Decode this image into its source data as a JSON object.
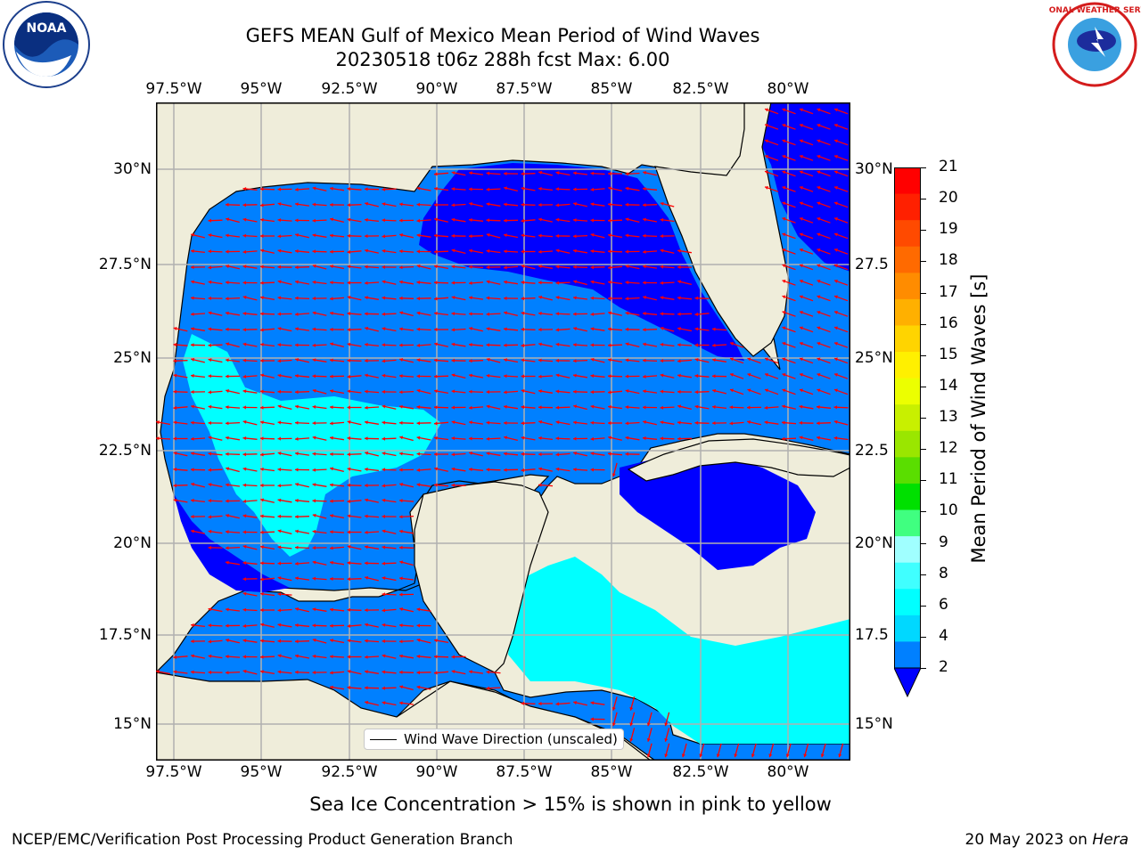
{
  "title": {
    "line1": "GEFS MEAN Gulf of Mexico Mean Period of Wind Waves",
    "line2": "20230518 t06z 288h fcst   Max: 6.00"
  },
  "logos": {
    "left": {
      "icon": "noaa-logo",
      "text_ring": "NATIONAL OCEANIC AND ATMOSPHERIC ADMINISTRATION · U.S. DEPARTMENT OF COMMERCE",
      "center": "NOAA"
    },
    "right": {
      "icon": "nws-logo",
      "text_ring": "NATIONAL WEATHER SERVICE"
    }
  },
  "map": {
    "lon_labels": [
      "97.5°W",
      "95°W",
      "92.5°W",
      "90°W",
      "87.5°W",
      "85°W",
      "82.5°W",
      "80°W"
    ],
    "lat_labels_left": [
      "30°N",
      "27.5°N",
      "25°N",
      "22.5°N",
      "20°N",
      "17.5°N",
      "15°N"
    ],
    "lat_labels_right": [
      "30°N",
      "27.5",
      "25°N",
      "22.5",
      "20°N",
      "17.5",
      "15°N"
    ],
    "extent": {
      "lon_min": -98,
      "lon_max": -78.2,
      "lat_min": 14,
      "lat_max": 31.6
    },
    "colors": {
      "land": "#efedda",
      "ocean_2_4": "#0080ff",
      "ocean_under_2": "#0000ff",
      "ocean_4_6": "#00ffff",
      "arrow": "#ff0000",
      "grid": "#b0b0b0",
      "coast": "#000000"
    },
    "legend_label": "Wind Wave Direction (unscaled)"
  },
  "colorbar": {
    "label": "Mean Period of Wind Waves [s]",
    "ticks": [
      "21",
      "20",
      "19",
      "18",
      "17",
      "16",
      "15",
      "14",
      "13",
      "12",
      "11",
      "10",
      "9",
      "8",
      "6",
      "4",
      "2"
    ],
    "colors": [
      "#ff0000",
      "#ff2000",
      "#ff4a00",
      "#ff6a00",
      "#ff8c00",
      "#ffb000",
      "#ffd400",
      "#fff000",
      "#ecff00",
      "#c8f000",
      "#9ae600",
      "#5ade00",
      "#00e000",
      "#40ff80",
      "#a0ffff",
      "#40ffff",
      "#00ffff",
      "#00d8ff",
      "#0080ff"
    ]
  },
  "caption": "Sea Ice Concentration > 15% is shown in pink to yellow",
  "footer": {
    "left": "NCEP/EMC/Verification Post Processing Product Generation Branch",
    "right_date": "20 May 2023 on",
    "right_host": "Hera"
  }
}
